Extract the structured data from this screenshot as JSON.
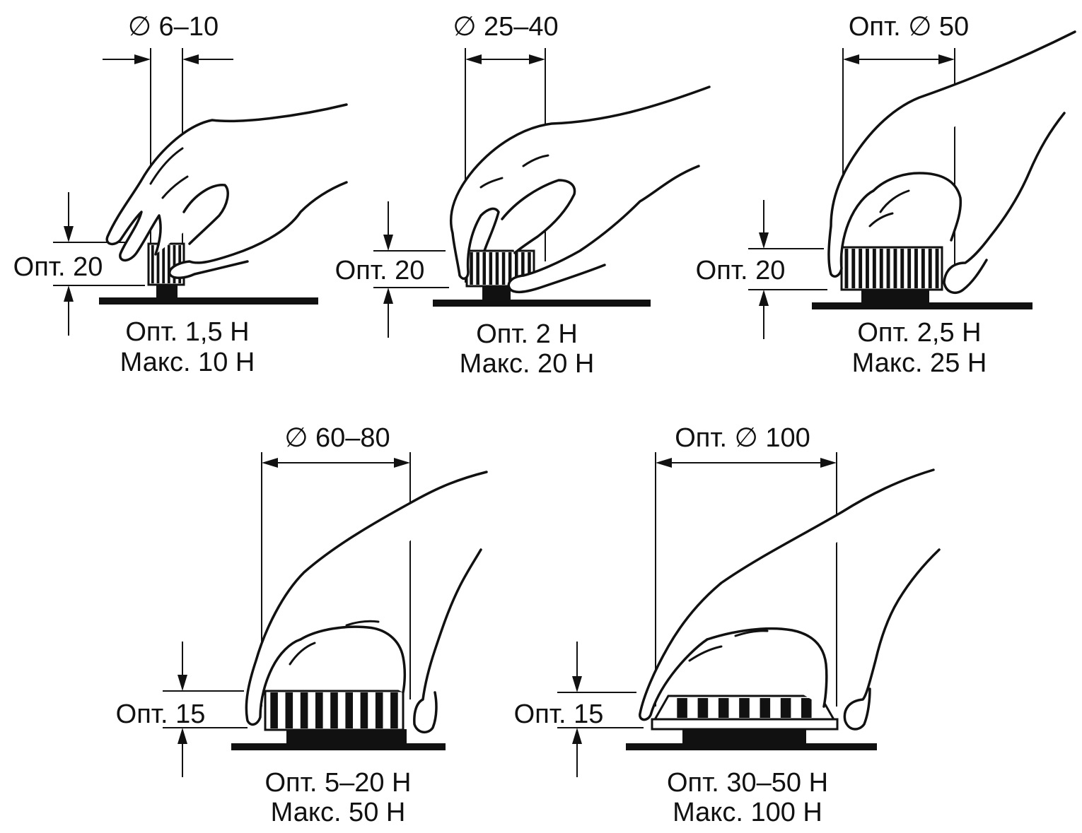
{
  "colors": {
    "ink": "#111111",
    "background": "#ffffff"
  },
  "panels": [
    {
      "id": "knob-1",
      "diameter_label": "∅ 6–10",
      "height_label": "Опт. 20",
      "force_optimal": "Опт. 1,5 Н",
      "force_max": "Макс. 10 Н",
      "ribs": 6
    },
    {
      "id": "knob-2",
      "diameter_label": "∅ 25–40",
      "height_label": "Опт. 20",
      "force_optimal": "Опт. 2 Н",
      "force_max": "Макс. 20 Н",
      "ribs": 10
    },
    {
      "id": "knob-3",
      "diameter_label": "Опт. ∅ 50",
      "height_label": "Опт. 20",
      "force_optimal": "Опт. 2,5 Н",
      "force_max": "Макс. 25 Н",
      "ribs": 14
    },
    {
      "id": "knob-4",
      "diameter_label": "∅ 60–80",
      "height_label": "Опт. 15",
      "force_optimal": "Опт. 5–20 Н",
      "force_max": "Макс. 50 Н",
      "ribs": 9
    },
    {
      "id": "knob-5",
      "diameter_label": "Опт. ∅ 100",
      "height_label": "Опт. 15",
      "force_optimal": "Опт. 30–50 Н",
      "force_max": "Макс. 100 Н",
      "ribs": 7
    }
  ]
}
